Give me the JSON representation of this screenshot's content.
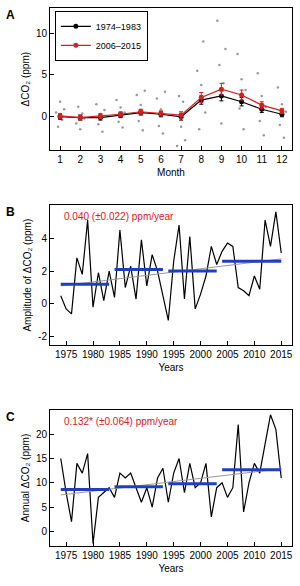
{
  "chart_data": [
    {
      "type": "line",
      "label": "A",
      "xlabel": "Month",
      "ylabel": "ΔCO₂ (ppm)",
      "xlim": [
        0.5,
        12.5
      ],
      "xticks": [
        1,
        2,
        3,
        4,
        5,
        6,
        7,
        8,
        9,
        10,
        11,
        12
      ],
      "ylim": [
        -4,
        13
      ],
      "yticks": [
        0,
        5,
        10
      ],
      "grid": false,
      "legend": "upper left",
      "series": [
        {
          "type": "scatter",
          "color": "#999999",
          "marker": "circle",
          "x": [
            0.8,
            0.9,
            1.0,
            1.1,
            1.2,
            1.8,
            1.9,
            2.0,
            2.1,
            2.2,
            2.8,
            2.9,
            3.0,
            3.1,
            3.2,
            3.8,
            3.9,
            4.0,
            4.1,
            4.2,
            4.8,
            4.9,
            5.0,
            5.1,
            5.2,
            5.8,
            5.9,
            6.0,
            6.1,
            6.2,
            6.8,
            6.9,
            7.0,
            7.1,
            7.2,
            7.8,
            7.9,
            8.0,
            8.1,
            8.2,
            8.8,
            8.9,
            9.0,
            9.1,
            9.2,
            9.8,
            9.9,
            10.0,
            10.1,
            10.2,
            10.8,
            10.9,
            11.0,
            11.1,
            11.2,
            11.8,
            11.9,
            12.0,
            12.1,
            12.2
          ],
          "values": [
            0.5,
            -1.2,
            1.8,
            -0.4,
            0.9,
            -0.8,
            1.2,
            -1.5,
            0.4,
            -0.2,
            1.5,
            -0.9,
            0.3,
            -1.8,
            0.8,
            2.0,
            -0.6,
            1.1,
            -1.3,
            0.5,
            2.6,
            -0.5,
            1.4,
            -1.6,
            3.1,
            2.2,
            -1.1,
            0.9,
            -2.0,
            3.0,
            -3.5,
            2.5,
            -1.2,
            1.8,
            -2.8,
            5.5,
            -1.5,
            3.8,
            9.0,
            0.5,
            11.5,
            6.2,
            -0.8,
            4.0,
            8.1,
            7.5,
            1.0,
            4.5,
            -1.5,
            3.2,
            5.2,
            -0.5,
            2.5,
            -2.2,
            1.2,
            3.5,
            -1.0,
            1.5,
            -2.5,
            0.6
          ]
        },
        {
          "type": "line",
          "name": "1974–1983",
          "color": "#000000",
          "marker": "circle",
          "line_style": "solid",
          "x": [
            1,
            2,
            3,
            4,
            5,
            6,
            7,
            8,
            9,
            10,
            11,
            12
          ],
          "values": [
            0.0,
            -0.1,
            -0.1,
            0.2,
            0.5,
            0.3,
            0.0,
            2.0,
            2.5,
            1.8,
            0.9,
            0.3
          ],
          "errors": [
            0.3,
            0.3,
            0.3,
            0.3,
            0.3,
            0.3,
            0.4,
            0.5,
            0.6,
            0.5,
            0.4,
            0.3
          ]
        },
        {
          "type": "line",
          "name": "2006–2015",
          "color": "#d62020",
          "marker": "circle",
          "line_style": "solid",
          "x": [
            1,
            2,
            3,
            4,
            5,
            6,
            7,
            8,
            9,
            10,
            11,
            12
          ],
          "values": [
            0.1,
            -0.1,
            0.1,
            0.3,
            0.6,
            0.4,
            0.2,
            2.3,
            3.3,
            2.6,
            1.4,
            0.7
          ],
          "errors": [
            0.3,
            0.3,
            0.3,
            0.3,
            0.3,
            0.3,
            0.4,
            0.6,
            0.7,
            0.6,
            0.4,
            0.3
          ]
        }
      ]
    },
    {
      "type": "line",
      "label": "B",
      "xlabel": "Years",
      "ylabel": "Amplitude of ΔCO₂ (ppm)",
      "xlim": [
        1972,
        2017
      ],
      "xticks": [
        1975,
        1980,
        1985,
        1990,
        1995,
        2000,
        2005,
        2010,
        2015
      ],
      "ylim": [
        -2.5,
        6
      ],
      "yticks": [
        -2,
        0,
        2,
        4
      ],
      "grid": false,
      "annotations": [
        {
          "text": "0.040 (±0.022) ppm/year",
          "color": "#d62020"
        }
      ],
      "series": [
        {
          "type": "line",
          "color": "#000000",
          "marker": "none",
          "line_style": "solid",
          "x": [
            1974,
            1975,
            1976,
            1977,
            1978,
            1979,
            1980,
            1981,
            1982,
            1983,
            1984,
            1985,
            1986,
            1987,
            1988,
            1989,
            1990,
            1991,
            1992,
            1993,
            1994,
            1995,
            1996,
            1997,
            1998,
            1999,
            2000,
            2001,
            2002,
            2003,
            2004,
            2005,
            2006,
            2007,
            2008,
            2009,
            2010,
            2011,
            2012,
            2013,
            2014,
            2015
          ],
          "values": [
            0.5,
            -0.3,
            -0.6,
            2.8,
            1.8,
            5.1,
            -0.2,
            1.9,
            0.2,
            2.0,
            0.4,
            4.5,
            1.0,
            2.3,
            0.3,
            3.9,
            1.1,
            3.0,
            2.0,
            0.5,
            -1.0,
            2.6,
            4.8,
            0.3,
            4.1,
            -0.3,
            0.6,
            1.7,
            3.5,
            2.4,
            3.2,
            3.7,
            3.5,
            1.0,
            0.8,
            0.5,
            1.7,
            0.9,
            5.1,
            3.5,
            5.6,
            3.1
          ]
        },
        {
          "type": "line",
          "color": "#999999",
          "marker": "none",
          "line_style": "solid",
          "x": [
            1974,
            2015
          ],
          "values": [
            1.1,
            2.74
          ]
        },
        {
          "type": "line",
          "color": "#1f3fbf",
          "marker": "none",
          "line_style": "solid",
          "x": [
            1974,
            1983
          ],
          "values": [
            1.2,
            1.2
          ]
        },
        {
          "type": "line",
          "color": "#1f3fbf",
          "marker": "none",
          "line_style": "solid",
          "x": [
            1984,
            1993
          ],
          "values": [
            2.1,
            2.1
          ]
        },
        {
          "type": "line",
          "color": "#1f3fbf",
          "marker": "none",
          "line_style": "solid",
          "x": [
            1994,
            2003
          ],
          "values": [
            2.0,
            2.0
          ]
        },
        {
          "type": "line",
          "color": "#1f3fbf",
          "marker": "none",
          "line_style": "solid",
          "x": [
            2004,
            2015
          ],
          "values": [
            2.6,
            2.6
          ]
        }
      ]
    },
    {
      "type": "line",
      "label": "C",
      "xlabel": "Years",
      "ylabel": "Annual ΔCO₂ (ppm)",
      "xlim": [
        1972,
        2017
      ],
      "xticks": [
        1975,
        1980,
        1985,
        1990,
        1995,
        2000,
        2005,
        2010,
        2015
      ],
      "ylim": [
        -3,
        25
      ],
      "yticks": [
        0,
        5,
        10,
        15,
        20
      ],
      "grid": false,
      "annotations": [
        {
          "text": "0.132* (±0.064) ppm/year",
          "color": "#d62020"
        }
      ],
      "series": [
        {
          "type": "line",
          "color": "#000000",
          "marker": "none",
          "line_style": "solid",
          "x": [
            1974,
            1975,
            1976,
            1977,
            1978,
            1979,
            1980,
            1981,
            1982,
            1983,
            1984,
            1985,
            1986,
            1987,
            1988,
            1989,
            1990,
            1991,
            1992,
            1993,
            1994,
            1995,
            1996,
            1997,
            1998,
            1999,
            2000,
            2001,
            2002,
            2003,
            2004,
            2005,
            2006,
            2007,
            2008,
            2009,
            2010,
            2011,
            2012,
            2013,
            2014,
            2015
          ],
          "values": [
            15,
            8,
            2,
            14,
            12,
            16,
            -2.5,
            7,
            8,
            9,
            7,
            12,
            11,
            12,
            9,
            6,
            9,
            5,
            11,
            13,
            6,
            12,
            15,
            8,
            14,
            9,
            10,
            14,
            3,
            9,
            10,
            7,
            9,
            22,
            4,
            10,
            14,
            12,
            18,
            24,
            21,
            11
          ]
        },
        {
          "type": "line",
          "color": "#999999",
          "marker": "none",
          "line_style": "solid",
          "x": [
            1974,
            2015
          ],
          "values": [
            7.5,
            12.9
          ]
        },
        {
          "type": "line",
          "color": "#1f3fbf",
          "marker": "none",
          "line_style": "solid",
          "x": [
            1974,
            1983
          ],
          "values": [
            8.6,
            8.6
          ]
        },
        {
          "type": "line",
          "color": "#1f3fbf",
          "marker": "none",
          "line_style": "solid",
          "x": [
            1984,
            1993
          ],
          "values": [
            9.2,
            9.2
          ]
        },
        {
          "type": "line",
          "color": "#1f3fbf",
          "marker": "none",
          "line_style": "solid",
          "x": [
            1994,
            2003
          ],
          "values": [
            9.8,
            9.8
          ]
        },
        {
          "type": "line",
          "color": "#1f3fbf",
          "marker": "none",
          "line_style": "solid",
          "x": [
            2004,
            2015
          ],
          "values": [
            12.7,
            12.7
          ]
        }
      ]
    }
  ]
}
